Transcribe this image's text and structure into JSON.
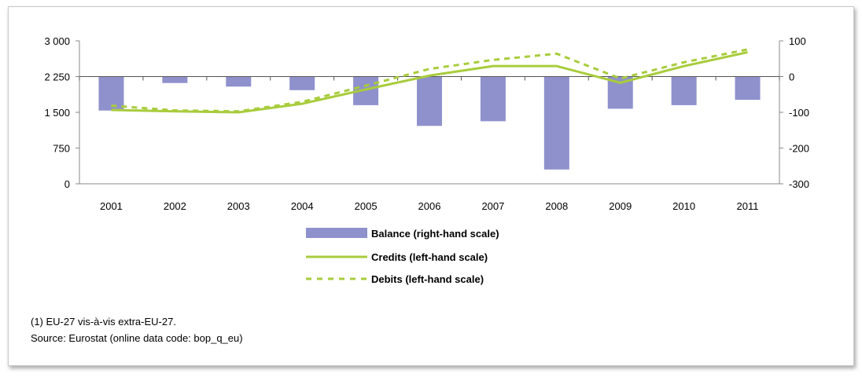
{
  "chart_data": {
    "type": "bar",
    "categories": [
      "2001",
      "2002",
      "2003",
      "2004",
      "2005",
      "2006",
      "2007",
      "2008",
      "2009",
      "2010",
      "2011"
    ],
    "left_axis": {
      "min": 0,
      "max": 3000,
      "ticks": [
        0,
        750,
        1500,
        2250,
        3000
      ],
      "tick_labels": [
        "0",
        "750",
        "1 500",
        "2 250",
        "3 000"
      ]
    },
    "right_axis": {
      "min": -300,
      "max": 100,
      "ticks": [
        -300,
        -200,
        -100,
        0,
        100
      ],
      "tick_labels": [
        "-300",
        "-200",
        "-100",
        "0",
        "100"
      ]
    },
    "series": [
      {
        "name": "Balance (right-hand scale)",
        "type": "bar",
        "axis": "right",
        "color": "#8e91cc",
        "values": [
          -95,
          -18,
          -28,
          -38,
          -80,
          -138,
          -125,
          -260,
          -90,
          -80,
          -65
        ]
      },
      {
        "name": "Credits (left-hand scale)",
        "type": "line",
        "axis": "left",
        "color": "#a8cc3c",
        "dashed": false,
        "values": [
          1550,
          1520,
          1500,
          1680,
          1980,
          2270,
          2470,
          2470,
          2120,
          2470,
          2760
        ]
      },
      {
        "name": "Debits (left-hand scale)",
        "type": "line",
        "axis": "left",
        "color": "#a8cc3c",
        "dashed": true,
        "values": [
          1640,
          1540,
          1520,
          1720,
          2060,
          2410,
          2600,
          2730,
          2210,
          2550,
          2820
        ]
      }
    ],
    "grid": false,
    "legend_position": "bottom"
  },
  "notes": {
    "footnote": "(1) EU-27 vis-à-vis extra-EU-27.",
    "source": "Source: Eurostat (online data code: bop_q_eu)"
  }
}
